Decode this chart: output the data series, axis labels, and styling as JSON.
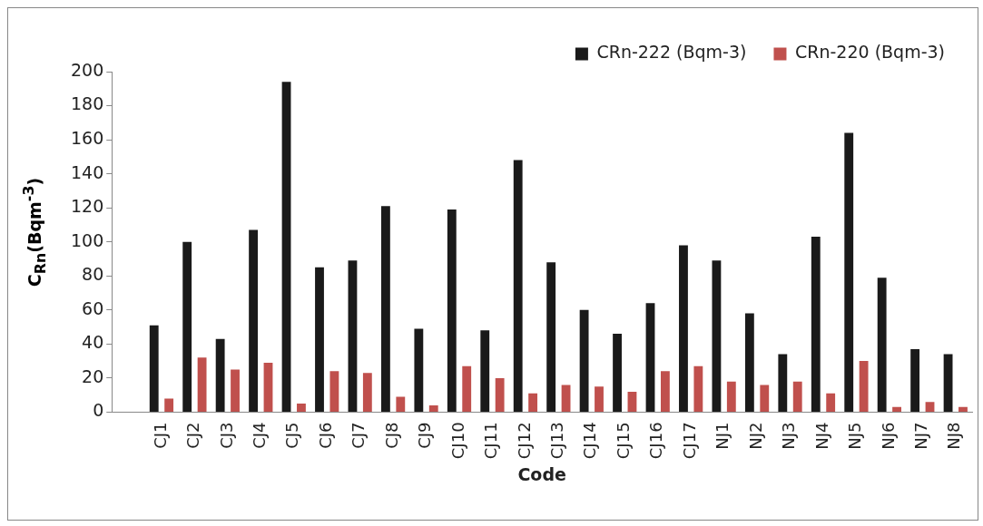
{
  "chart_data": {
    "type": "bar",
    "xlabel": "Code",
    "ylabel": "C$_{Rn}$(Bqm$^{-3}$)",
    "categories": [
      null,
      "CJ1",
      "CJ2",
      "CJ3",
      "CJ4",
      "CJ5",
      "CJ6",
      "CJ7",
      "CJ8",
      "CJ9",
      "CJ10",
      "CJ11",
      "CJ12",
      "CJ13",
      "CJ14",
      "CJ15",
      "CJ16",
      "CJ17",
      "NJ1",
      "NJ2",
      "NJ3",
      "NJ4",
      "NJ5",
      "NJ6",
      "NJ7",
      "NJ8"
    ],
    "series": [
      {
        "name": "CRn-222 (Bqm-3)",
        "color": "#1a1a1a",
        "values": [
          null,
          51,
          100,
          43,
          107,
          194,
          85,
          89,
          121,
          49,
          119,
          48,
          148,
          88,
          60,
          46,
          64,
          98,
          89,
          58,
          34,
          103,
          164,
          79,
          37,
          34
        ]
      },
      {
        "name": "CRn-220 (Bqm-3)",
        "color": "#c0504d",
        "values": [
          null,
          8,
          32,
          25,
          29,
          5,
          24,
          23,
          9,
          4,
          27,
          20,
          11,
          16,
          15,
          12,
          24,
          27,
          18,
          16,
          18,
          11,
          30,
          3,
          6,
          3
        ]
      }
    ],
    "ylim": [
      0,
      200
    ],
    "yticks": [
      0,
      20,
      40,
      60,
      80,
      100,
      120,
      140,
      160,
      180,
      200
    ],
    "grid": false,
    "legend": "top right"
  }
}
